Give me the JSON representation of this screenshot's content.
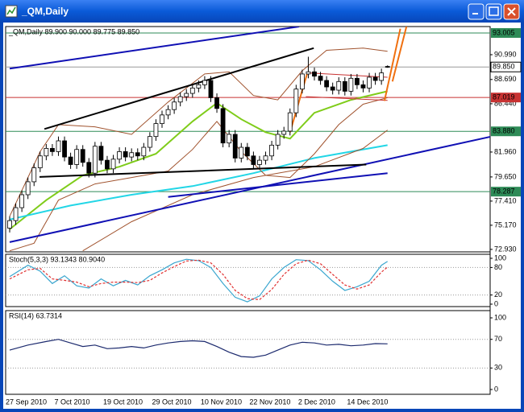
{
  "window": {
    "title": "_QM,Daily"
  },
  "chart_data": [
    {
      "type": "candlestick",
      "header": "_QM,Daily  89.900 90.000 89.775 89.850",
      "categories": [
        "27 Sep 2010",
        null,
        null,
        null,
        null,
        null,
        null,
        null,
        "7 Oct 2010",
        null,
        null,
        null,
        null,
        null,
        null,
        null,
        "19 Oct 2010",
        null,
        null,
        null,
        null,
        null,
        null,
        null,
        "29 Oct 2010",
        null,
        null,
        null,
        null,
        null,
        null,
        null,
        "10 Nov 2010",
        null,
        null,
        null,
        null,
        null,
        null,
        null,
        "22 Nov 2010",
        null,
        null,
        null,
        null,
        null,
        null,
        null,
        "2 Dec 2010",
        null,
        null,
        null,
        null,
        null,
        null,
        null,
        "14 Dec 2010",
        null,
        null,
        null,
        null,
        null,
        null
      ],
      "open": [
        74.9,
        75.6,
        76.8,
        78.0,
        79.2,
        80.5,
        81.6,
        82.3,
        82.0,
        83.0,
        81.5,
        80.8,
        82.2,
        81.0,
        80.0,
        82.5,
        81.2,
        80.4,
        81.3,
        82.0,
        81.5,
        81.9,
        81.6,
        82.4,
        83.4,
        84.6,
        85.4,
        85.9,
        86.6,
        87.1,
        87.4,
        87.9,
        88.2,
        88.6,
        87.0,
        86.0,
        82.8,
        83.6,
        81.4,
        82.4,
        81.6,
        80.8,
        81.2,
        81.6,
        82.6,
        83.6,
        83.9,
        85.6,
        87.8,
        89.2,
        89.4,
        89.0,
        88.6,
        88.0,
        87.7,
        88.5,
        87.6,
        88.8,
        88.2,
        87.9,
        88.9,
        88.6,
        89.9
      ],
      "high": [
        76.0,
        77.2,
        78.4,
        79.6,
        80.9,
        82.0,
        82.7,
        82.7,
        83.4,
        83.4,
        81.9,
        82.6,
        82.6,
        81.4,
        82.9,
        82.9,
        81.6,
        81.7,
        82.4,
        82.4,
        82.3,
        82.3,
        82.8,
        83.8,
        85.0,
        85.8,
        86.3,
        87.0,
        87.5,
        87.8,
        88.3,
        88.6,
        89.0,
        89.0,
        87.4,
        86.4,
        84.0,
        84.0,
        82.8,
        82.8,
        82.0,
        81.6,
        82.0,
        83.0,
        84.0,
        84.3,
        86.0,
        88.2,
        89.6,
        90.8,
        89.8,
        89.4,
        89.0,
        88.4,
        88.9,
        88.9,
        89.2,
        89.2,
        88.6,
        89.3,
        89.3,
        89.7,
        90.0
      ],
      "low": [
        74.5,
        75.2,
        76.4,
        77.6,
        78.8,
        80.1,
        81.2,
        81.6,
        81.6,
        81.1,
        80.4,
        80.4,
        80.6,
        79.6,
        79.6,
        80.8,
        80.0,
        80.0,
        80.9,
        81.1,
        81.1,
        81.2,
        81.2,
        82.0,
        83.0,
        84.2,
        85.0,
        85.5,
        86.2,
        86.7,
        87.0,
        87.5,
        87.8,
        86.6,
        85.6,
        82.4,
        82.4,
        81.0,
        81.0,
        81.2,
        80.4,
        80.4,
        80.8,
        81.2,
        82.2,
        83.2,
        83.5,
        85.2,
        87.4,
        88.8,
        88.6,
        88.2,
        87.6,
        87.3,
        87.3,
        87.2,
        87.2,
        87.8,
        87.5,
        87.5,
        88.2,
        88.2,
        89.775
      ],
      "close": [
        75.6,
        76.8,
        78.0,
        79.2,
        80.5,
        81.6,
        82.3,
        82.0,
        83.0,
        81.5,
        80.8,
        82.2,
        81.0,
        80.0,
        82.5,
        81.2,
        80.4,
        81.3,
        82.0,
        81.5,
        81.9,
        81.6,
        82.4,
        83.4,
        84.6,
        85.4,
        85.9,
        86.6,
        87.1,
        87.4,
        87.9,
        88.2,
        88.6,
        87.0,
        86.0,
        82.8,
        83.6,
        81.4,
        82.4,
        81.6,
        80.8,
        81.2,
        81.6,
        82.6,
        83.6,
        83.9,
        85.6,
        87.8,
        89.2,
        89.4,
        89.0,
        88.6,
        88.0,
        87.7,
        88.5,
        87.6,
        88.8,
        88.2,
        87.9,
        88.9,
        88.6,
        89.3,
        89.85
      ],
      "up_color": "#ffffff",
      "down_color": "#000000",
      "ylim": [
        72.7,
        93.6
      ],
      "yticks": [
        {
          "value": 72.93,
          "label": "72.930"
        },
        {
          "value": 75.17,
          "label": "75.170"
        },
        {
          "value": 77.41,
          "label": "77.410"
        },
        {
          "value": 79.65,
          "label": "79.650"
        },
        {
          "value": 81.96,
          "label": "81.960"
        },
        {
          "value": 86.44,
          "label": "86.440"
        },
        {
          "value": 88.69,
          "label": "88.690"
        },
        {
          "value": 90.99,
          "label": "90.990"
        }
      ],
      "levels": [
        {
          "value": 93.005,
          "label": "93.005",
          "color": "#2e8b57"
        },
        {
          "value": 89.85,
          "label": "89.850",
          "color": "#ffffff"
        },
        {
          "value": 87.019,
          "label": "87.019",
          "color": "#c83232"
        },
        {
          "value": 83.88,
          "label": "83.880",
          "color": "#2e8b57"
        },
        {
          "value": 78.287,
          "label": "78.287",
          "color": "#2e8b57"
        }
      ],
      "overlays": [
        {
          "color": "#7fcc1a",
          "width": 2,
          "x": [
            0,
            6,
            12,
            18,
            24,
            30,
            34,
            38,
            42,
            46,
            50,
            56,
            62
          ],
          "values": [
            74.8,
            77.5,
            79.8,
            80.6,
            81.8,
            84.8,
            86.5,
            85.0,
            83.8,
            83.2,
            85.6,
            86.8,
            87.6
          ]
        },
        {
          "color": "#22d6e6",
          "width": 2,
          "x": [
            0,
            10,
            20,
            30,
            40,
            50,
            62
          ],
          "values": [
            75.7,
            77.0,
            78.0,
            78.8,
            80.0,
            81.4,
            82.6
          ]
        },
        {
          "color": "#a0522d",
          "width": 1,
          "x": [
            0,
            5,
            8,
            14,
            20,
            26,
            32,
            36,
            40,
            44,
            48,
            52,
            58,
            62
          ],
          "values": [
            76.0,
            82.0,
            84.5,
            84.3,
            83.6,
            86.6,
            89.2,
            89.4,
            87.2,
            86.8,
            89.5,
            91.4,
            91.6,
            91.3
          ]
        },
        {
          "color": "#a0522d",
          "width": 1,
          "x": [
            0,
            4,
            8,
            14,
            20,
            26,
            30,
            34,
            38,
            42,
            46,
            50,
            54,
            58,
            62
          ],
          "values": [
            72.8,
            73.5,
            77.5,
            79.0,
            79.6,
            80.2,
            82.2,
            84.8,
            82.0,
            79.8,
            79.6,
            81.8,
            84.5,
            86.4,
            87.0
          ]
        },
        {
          "color": "#a0522d",
          "width": 1,
          "x": [
            12,
            20,
            30,
            40,
            50,
            58,
            62
          ],
          "values": [
            72.8,
            75.5,
            78.0,
            79.6,
            80.6,
            82.3,
            84.0
          ]
        },
        {
          "color": "#1010b4",
          "width": 2,
          "x": [
            0,
            47.5
          ],
          "values": [
            89.7,
            93.6
          ]
        },
        {
          "color": "#1010b4",
          "width": 2,
          "x": [
            0,
            79
          ],
          "values": [
            73.6,
            83.4
          ]
        },
        {
          "color": "#1010b4",
          "width": 2,
          "x": [
            26,
            62
          ],
          "values": [
            77.8,
            80.0
          ]
        },
        {
          "color": "#000000",
          "width": 2,
          "x": [
            5.7,
            49.9
          ],
          "values": [
            84.1,
            91.6
          ]
        },
        {
          "color": "#000000",
          "width": 2,
          "x": [
            4.9,
            58.5
          ],
          "values": [
            79.65,
            80.8
          ]
        },
        {
          "color": "#c83232",
          "width": 1,
          "x": [
            49,
            62
          ],
          "values": [
            89.3,
            88.9
          ]
        },
        {
          "color": "#c83232",
          "width": 1,
          "x": [
            48.6,
            62
          ],
          "values": [
            87.1,
            86.75
          ]
        },
        {
          "color": "#f07010",
          "width": 2,
          "x": [
            46,
            48.8
          ],
          "values": [
            83.8,
            89.2
          ]
        },
        {
          "color": "#f07010",
          "width": 2,
          "x": [
            61.5,
            64.1
          ],
          "values": [
            86.7,
            93.4
          ]
        },
        {
          "color": "#f07010",
          "width": 2,
          "x": [
            62.8,
            65.1
          ],
          "values": [
            88.5,
            93.6
          ]
        }
      ]
    },
    {
      "type": "line",
      "header": "Stoch(5,3,3) 93.1343 80.9040",
      "x": [
        0,
        3,
        5,
        7,
        9,
        11,
        13,
        15,
        17,
        19,
        21,
        23,
        25,
        27,
        29,
        31,
        33,
        35,
        37,
        39,
        41,
        43,
        45,
        47,
        49,
        51,
        53,
        55,
        57,
        59,
        61,
        62
      ],
      "series": [
        {
          "color": "#3aa6cf",
          "values": [
            60,
            85,
            72,
            45,
            62,
            40,
            35,
            55,
            40,
            52,
            42,
            62,
            75,
            90,
            98,
            95,
            80,
            45,
            15,
            5,
            18,
            55,
            80,
            97,
            95,
            75,
            50,
            30,
            38,
            50,
            85,
            93.1343
          ]
        },
        {
          "color": "#e03030",
          "dashed": true,
          "values": [
            55,
            75,
            78,
            55,
            52,
            48,
            38,
            45,
            48,
            48,
            47,
            52,
            68,
            82,
            94,
            96,
            90,
            65,
            30,
            12,
            10,
            32,
            65,
            88,
            96,
            88,
            65,
            42,
            33,
            42,
            70,
            80.904
          ]
        }
      ],
      "ylim": [
        -5.3,
        108.8
      ],
      "yticks": [
        0,
        20,
        80,
        100
      ],
      "levels": [
        20,
        80
      ]
    },
    {
      "type": "line",
      "header": "RSI(14) 63.7314",
      "x": [
        0,
        3,
        6,
        8,
        10,
        12,
        14,
        16,
        18,
        20,
        22,
        24,
        26,
        28,
        30,
        32,
        34,
        36,
        38,
        40,
        42,
        44,
        46,
        48,
        50,
        52,
        54,
        56,
        58,
        60,
        62
      ],
      "series": [
        {
          "color": "#1c2a6e",
          "values": [
            55,
            62,
            67,
            70,
            65,
            60,
            62,
            57,
            58,
            60,
            58,
            62,
            65,
            67,
            68,
            67,
            60,
            52,
            46,
            45,
            48,
            55,
            62,
            66,
            65,
            62,
            63,
            61,
            62,
            64,
            63.7314
          ]
        }
      ],
      "ylim": [
        -6.7,
        110.1
      ],
      "yticks": [
        0,
        30,
        70,
        100
      ],
      "levels": [
        30,
        70
      ]
    }
  ]
}
